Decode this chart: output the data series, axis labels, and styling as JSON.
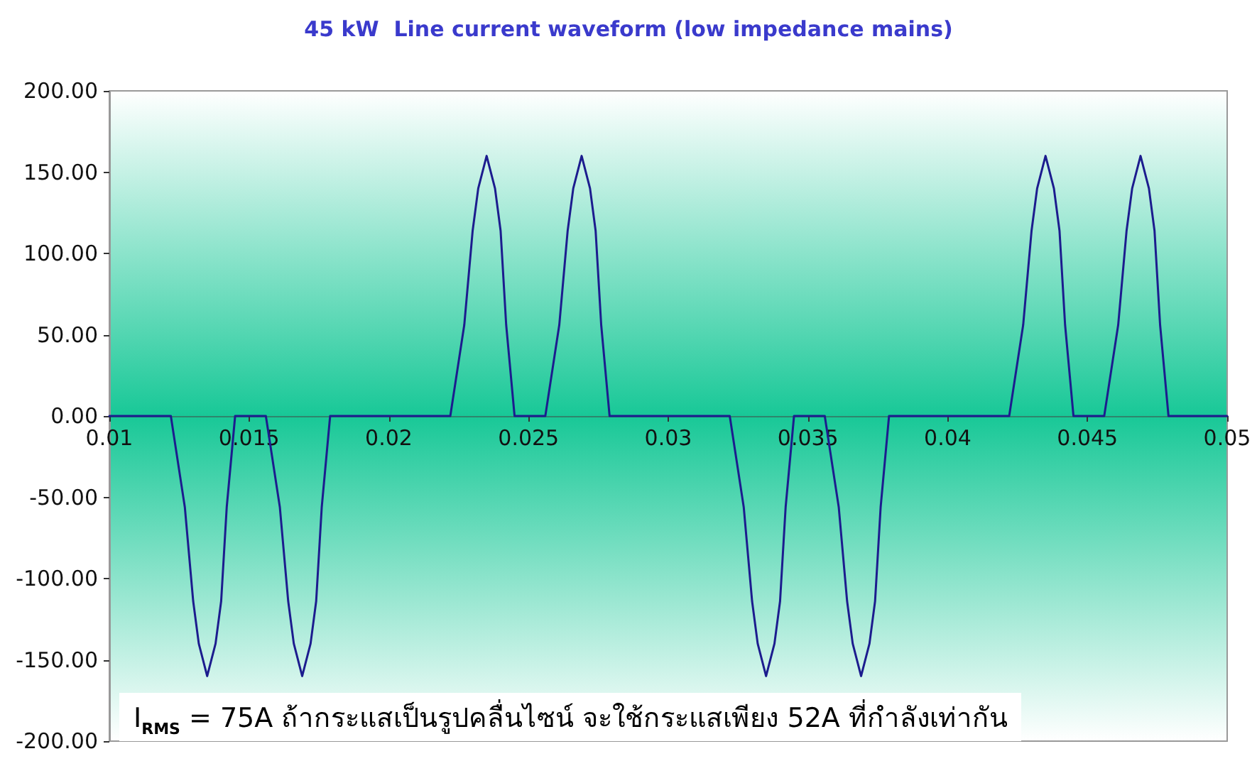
{
  "chart_data": {
    "type": "line",
    "title": "45 kW  Line current waveform (low impedance mains)",
    "x": [
      0.01,
      0.0122,
      0.0127,
      0.013,
      0.0132,
      0.0135,
      0.0138,
      0.014,
      0.0142,
      0.0145,
      0.0156,
      0.0161,
      0.0164,
      0.0166,
      0.0169,
      0.0172,
      0.0174,
      0.0176,
      0.0179,
      0.0222,
      0.0227,
      0.023,
      0.0232,
      0.0235,
      0.0238,
      0.024,
      0.0242,
      0.0245,
      0.0256,
      0.0261,
      0.0264,
      0.0266,
      0.0269,
      0.0272,
      0.0274,
      0.0276,
      0.0279,
      0.0322,
      0.0327,
      0.033,
      0.0332,
      0.0335,
      0.0338,
      0.034,
      0.0342,
      0.0345,
      0.0356,
      0.0361,
      0.0364,
      0.0366,
      0.0369,
      0.0372,
      0.0374,
      0.0376,
      0.0379,
      0.0422,
      0.0427,
      0.043,
      0.0432,
      0.0435,
      0.0438,
      0.044,
      0.0442,
      0.0445,
      0.0456,
      0.0461,
      0.0464,
      0.0466,
      0.0469,
      0.0472,
      0.0474,
      0.0476,
      0.0479,
      0.05
    ],
    "series": [
      {
        "color": "#1c1c8e",
        "values": [
          0,
          0,
          -56,
          -114,
          -140,
          -160,
          -140,
          -114,
          -56,
          0,
          0,
          -56,
          -114,
          -140,
          -160,
          -140,
          -114,
          -56,
          0,
          0,
          56,
          114,
          140,
          160,
          140,
          114,
          56,
          0,
          0,
          56,
          114,
          140,
          160,
          140,
          114,
          56,
          0,
          0,
          -56,
          -114,
          -140,
          -160,
          -140,
          -114,
          -56,
          0,
          0,
          -56,
          -114,
          -140,
          -160,
          -140,
          -114,
          -56,
          0,
          0,
          56,
          114,
          140,
          160,
          140,
          114,
          56,
          0,
          0,
          56,
          114,
          140,
          160,
          140,
          114,
          56,
          0,
          0
        ]
      }
    ],
    "xlim": [
      0.01,
      0.05
    ],
    "xticks": [
      0.01,
      0.015,
      0.02,
      0.025,
      0.03,
      0.035,
      0.04,
      0.045,
      0.05
    ],
    "ylim": [
      -200,
      200
    ],
    "yticks": [
      {
        "value": -200,
        "label": "-200.00"
      },
      {
        "value": -150,
        "label": "-150.00"
      },
      {
        "value": -100,
        "label": "-100.00"
      },
      {
        "value": -50,
        "label": "-50.00"
      },
      {
        "value": 0,
        "label": "0.00"
      },
      {
        "value": 50,
        "label": "50.00"
      },
      {
        "value": 100,
        "label": "100.00"
      },
      {
        "value": 150,
        "label": "150.00"
      },
      {
        "value": 200,
        "label": "200.00"
      }
    ],
    "grid": false,
    "marker": "none",
    "line_style": "solid",
    "annotations": [
      "I$_{RMS}$ = 75A ถ้ากระแสเป็นรูปคลื่นไซน์ จะใช้กระแสเพียง 52A ที่กำลังเท่ากัน"
    ]
  }
}
